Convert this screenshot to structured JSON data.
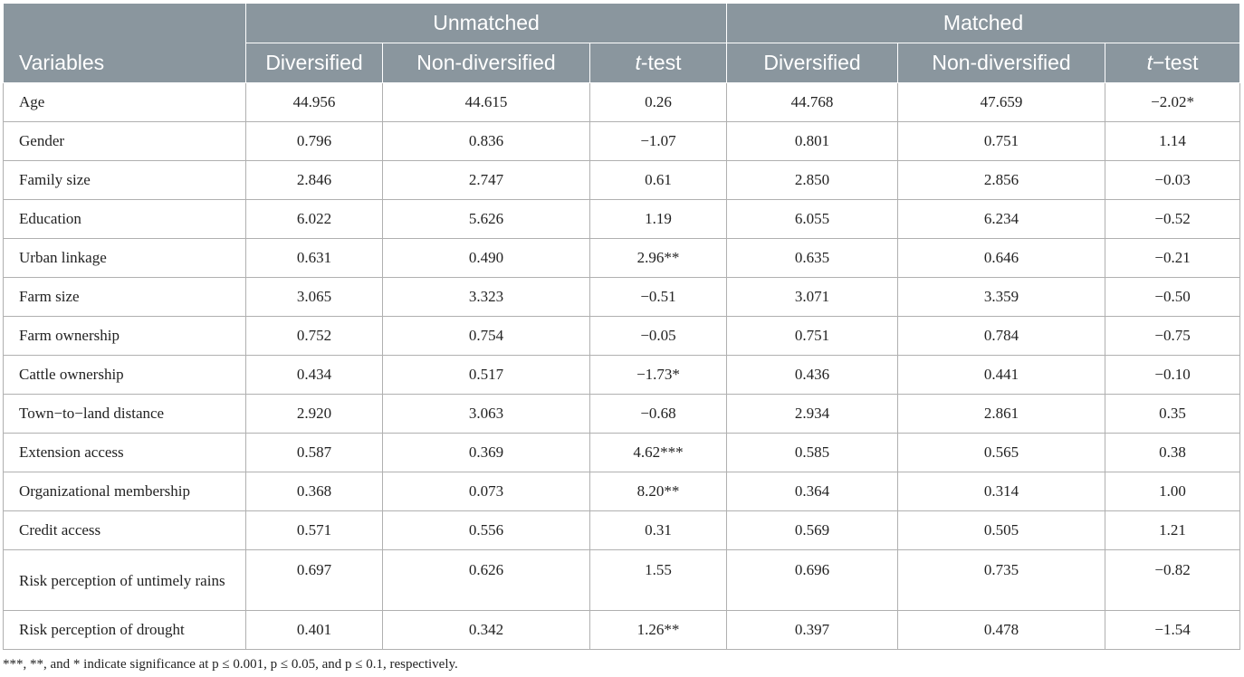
{
  "table": {
    "header_row1": {
      "variables": "Variables",
      "groups": [
        "Unmatched",
        "Matched"
      ]
    },
    "header_row2": {
      "unmatched": [
        {
          "text": "Diversified",
          "italic_prefix": "",
          "rest": ""
        },
        {
          "text": "Non-diversified",
          "italic_prefix": "",
          "rest": ""
        },
        {
          "text": "t-test",
          "italic_prefix": "t",
          "rest": "-test"
        }
      ],
      "matched": [
        {
          "text": "Diversified",
          "italic_prefix": "",
          "rest": ""
        },
        {
          "text": "Non-diversified",
          "italic_prefix": "",
          "rest": ""
        },
        {
          "text": "t−test",
          "italic_prefix": "t",
          "rest": "−test"
        }
      ]
    },
    "rows": [
      {
        "label": "Age",
        "values": [
          "44.956",
          "44.615",
          "0.26",
          "44.768",
          "47.659",
          "−2.02*"
        ]
      },
      {
        "label": "Gender",
        "values": [
          "0.796",
          "0.836",
          "−1.07",
          "0.801",
          "0.751",
          "1.14"
        ]
      },
      {
        "label": "Family size",
        "values": [
          "2.846",
          "2.747",
          "0.61",
          "2.850",
          "2.856",
          "−0.03"
        ]
      },
      {
        "label": "Education",
        "values": [
          "6.022",
          "5.626",
          "1.19",
          "6.055",
          "6.234",
          "−0.52"
        ]
      },
      {
        "label": "Urban linkage",
        "values": [
          "0.631",
          "0.490",
          "2.96**",
          "0.635",
          "0.646",
          "−0.21"
        ]
      },
      {
        "label": "Farm size",
        "values": [
          "3.065",
          "3.323",
          "−0.51",
          "3.071",
          "3.359",
          "−0.50"
        ]
      },
      {
        "label": "Farm ownership",
        "values": [
          "0.752",
          "0.754",
          "−0.05",
          "0.751",
          "0.784",
          "−0.75"
        ]
      },
      {
        "label": "Cattle ownership",
        "values": [
          "0.434",
          "0.517",
          "−1.73*",
          "0.436",
          "0.441",
          "−0.10"
        ]
      },
      {
        "label": "Town−to−land distance",
        "values": [
          "2.920",
          "3.063",
          "−0.68",
          "2.934",
          "2.861",
          "0.35"
        ]
      },
      {
        "label": "Extension access",
        "values": [
          "0.587",
          "0.369",
          "4.62***",
          "0.585",
          "0.565",
          "0.38"
        ]
      },
      {
        "label": "Organizational membership",
        "values": [
          "0.368",
          "0.073",
          "8.20**",
          "0.364",
          "0.314",
          "1.00"
        ]
      },
      {
        "label": "Credit access",
        "values": [
          "0.571",
          "0.556",
          "0.31",
          "0.569",
          "0.505",
          "1.21"
        ]
      },
      {
        "label": "Risk perception of untimely rains",
        "values": [
          "0.697",
          "0.626",
          "1.55",
          "0.696",
          "0.735",
          "−0.82"
        ]
      },
      {
        "label": "Risk perception of drought",
        "values": [
          "0.401",
          "0.342",
          "1.26**",
          "0.397",
          "0.478",
          "−1.54"
        ]
      }
    ]
  },
  "footnote": "***, **, and * indicate significance at p ≤ 0.001, p ≤ 0.05, and p ≤ 0.1, respectively."
}
